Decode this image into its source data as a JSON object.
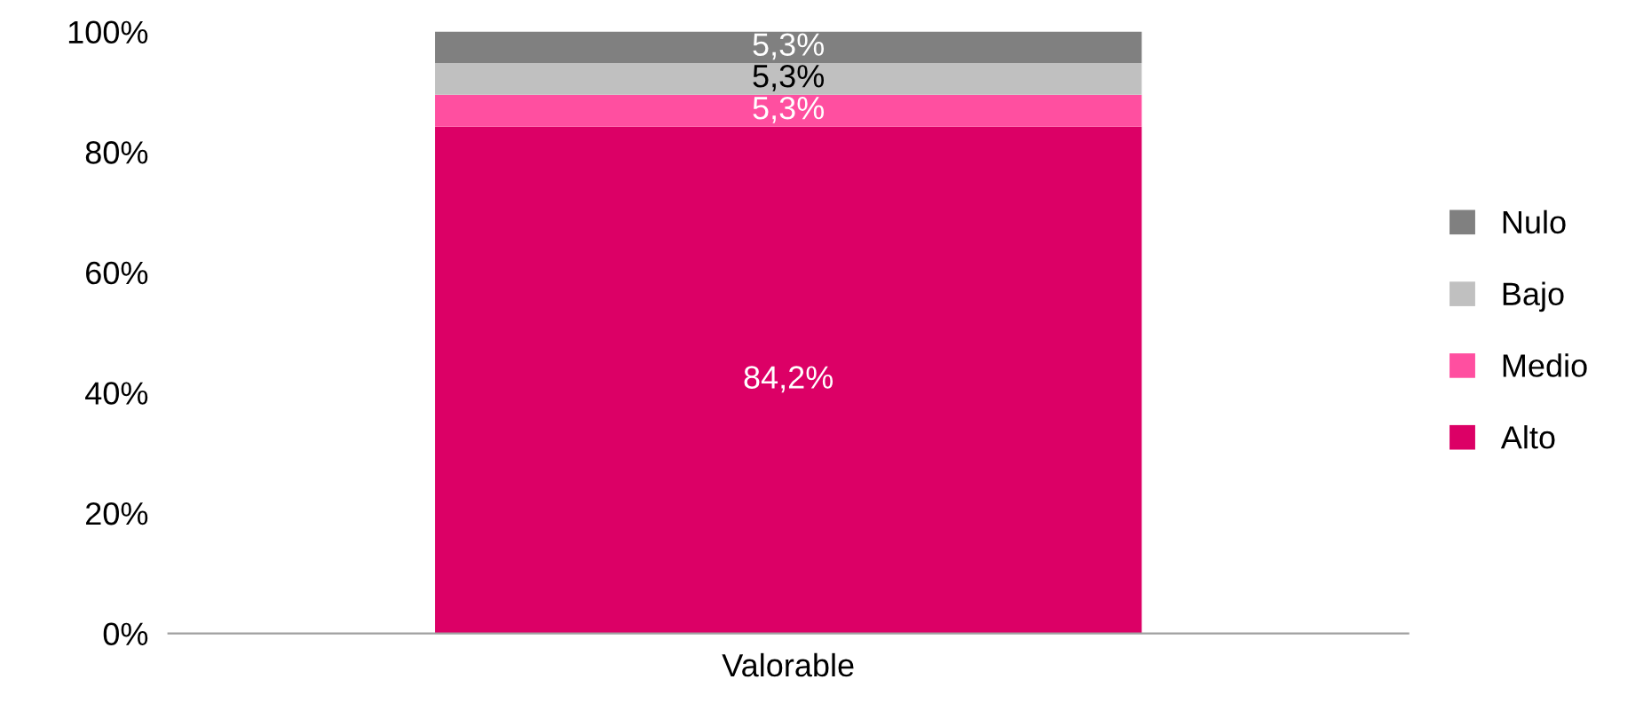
{
  "chart_data": {
    "type": "bar",
    "stacked": true,
    "categories": [
      "Valorable"
    ],
    "series": [
      {
        "name": "Alto",
        "color": "#dc0066",
        "values": [
          84.2
        ],
        "value_labels": [
          "84,2%"
        ]
      },
      {
        "name": "Medio",
        "color": "#ff4fa0",
        "values": [
          5.3
        ],
        "value_labels": [
          "5,3%"
        ]
      },
      {
        "name": "Bajo",
        "color": "#c0c0c0",
        "values": [
          5.3
        ],
        "value_labels": [
          "5,3%"
        ]
      },
      {
        "name": "Nulo",
        "color": "#808080",
        "values": [
          5.3
        ],
        "value_labels": [
          "5,3%"
        ]
      }
    ],
    "ylim": [
      0,
      100
    ],
    "yticks": [
      {
        "value": 0,
        "label": "0%"
      },
      {
        "value": 20,
        "label": "20%"
      },
      {
        "value": 40,
        "label": "40%"
      },
      {
        "value": 60,
        "label": "60%"
      },
      {
        "value": 80,
        "label": "80%"
      },
      {
        "value": 100,
        "label": "100%"
      }
    ],
    "grid": false,
    "legend": "right"
  }
}
